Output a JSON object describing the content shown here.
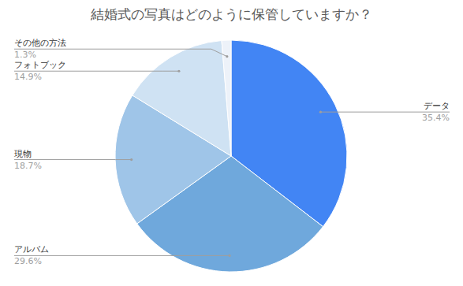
{
  "chart_data": {
    "type": "pie",
    "title": "結婚式の写真はどのように保管していますか？",
    "categories": [
      "データ",
      "アルバム",
      "現物",
      "フォトブック",
      "その他の方法"
    ],
    "values": [
      35.4,
      29.6,
      18.7,
      14.9,
      1.3
    ],
    "value_labels": [
      "35.4%",
      "29.6%",
      "18.7%",
      "14.9%",
      "1.3%"
    ],
    "colors": [
      "#4285f4",
      "#6fa8dc",
      "#9fc5e8",
      "#cfe2f3",
      "#edf2f9"
    ],
    "data_labels": true
  }
}
